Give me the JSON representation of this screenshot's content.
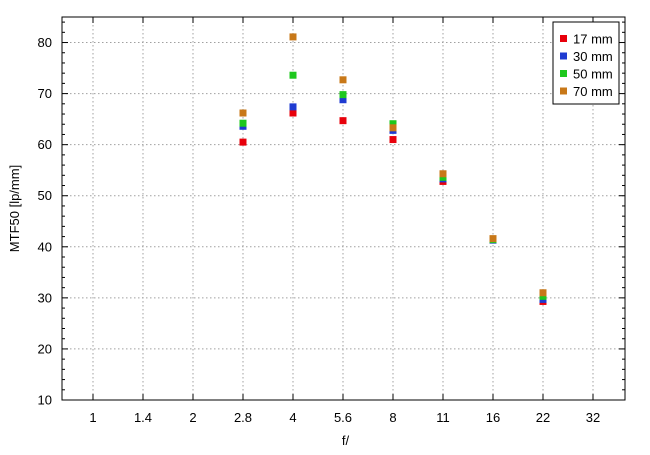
{
  "chart_data": {
    "type": "scatter",
    "title": "",
    "xlabel": "f/",
    "ylabel": "MTF50 [lp/mm]",
    "x_categories": [
      "1",
      "1.4",
      "2",
      "2.8",
      "4",
      "5.6",
      "8",
      "11",
      "16",
      "22",
      "32"
    ],
    "ylim": [
      10,
      85
    ],
    "yticks": [
      10,
      20,
      30,
      40,
      50,
      60,
      70,
      80
    ],
    "grid": true,
    "legend_position": "top-right",
    "series": [
      {
        "name": "17 mm",
        "color": "#e8000b",
        "points": [
          {
            "x": "2.8",
            "y": 60.5
          },
          {
            "x": "4",
            "y": 66.2
          },
          {
            "x": "5.6",
            "y": 64.7
          },
          {
            "x": "8",
            "y": 61.0
          },
          {
            "x": "11",
            "y": 52.8
          },
          {
            "x": "16",
            "y": 41.5
          },
          {
            "x": "22",
            "y": 29.3
          }
        ]
      },
      {
        "name": "30 mm",
        "color": "#1f3bd1",
        "points": [
          {
            "x": "2.8",
            "y": 63.6
          },
          {
            "x": "4",
            "y": 67.4
          },
          {
            "x": "5.6",
            "y": 68.8
          },
          {
            "x": "8",
            "y": 62.8
          },
          {
            "x": "11",
            "y": 53.3
          },
          {
            "x": "16",
            "y": 41.3
          },
          {
            "x": "22",
            "y": 29.7
          }
        ]
      },
      {
        "name": "50 mm",
        "color": "#1ec81e",
        "points": [
          {
            "x": "2.8",
            "y": 64.2
          },
          {
            "x": "4",
            "y": 73.6
          },
          {
            "x": "5.6",
            "y": 69.8
          },
          {
            "x": "8",
            "y": 64.1
          },
          {
            "x": "11",
            "y": 53.6
          },
          {
            "x": "16",
            "y": 41.4
          },
          {
            "x": "22",
            "y": 30.3
          }
        ]
      },
      {
        "name": "70 mm",
        "color": "#c87818",
        "points": [
          {
            "x": "2.8",
            "y": 66.2
          },
          {
            "x": "4",
            "y": 81.1
          },
          {
            "x": "5.6",
            "y": 72.7
          },
          {
            "x": "8",
            "y": 63.3
          },
          {
            "x": "11",
            "y": 54.3
          },
          {
            "x": "16",
            "y": 41.6
          },
          {
            "x": "22",
            "y": 31.0
          }
        ]
      }
    ]
  }
}
